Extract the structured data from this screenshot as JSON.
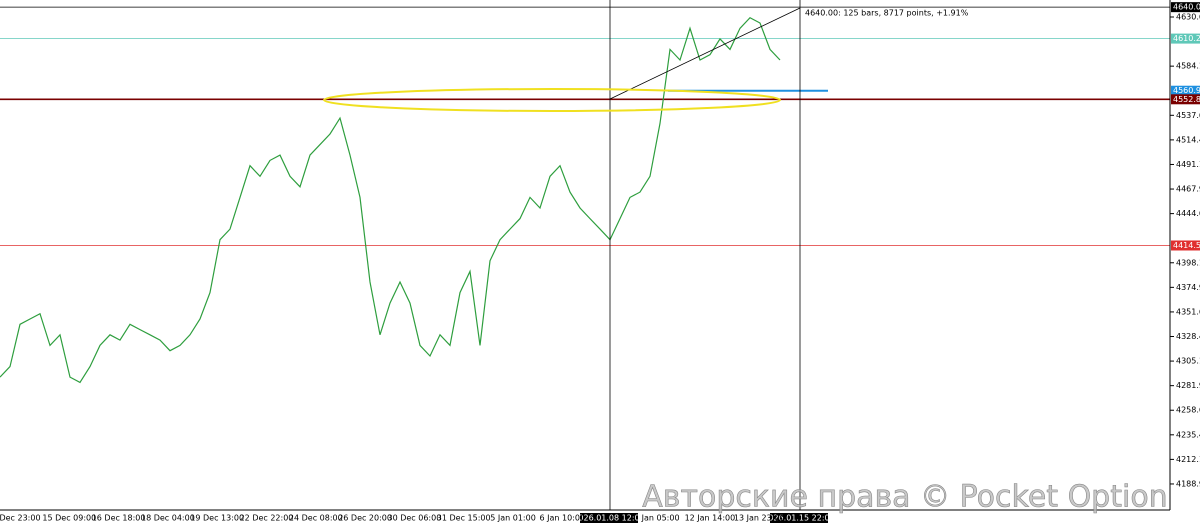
{
  "chart_data": {
    "type": "line",
    "values": [
      4290,
      4300,
      4340,
      4345,
      4350,
      4320,
      4330,
      4290,
      4285,
      4300,
      4320,
      4330,
      4325,
      4340,
      4335,
      4330,
      4325,
      4315,
      4320,
      4330,
      4345,
      4370,
      4420,
      4430,
      4460,
      4490,
      4480,
      4495,
      4500,
      4480,
      4470,
      4500,
      4510,
      4520,
      4535,
      4500,
      4460,
      4380,
      4330,
      4360,
      4380,
      4360,
      4320,
      4310,
      4330,
      4320,
      4370,
      4390,
      4320,
      4400,
      4420,
      4430,
      4440,
      4460,
      4450,
      4480,
      4490,
      4465,
      4450,
      4440,
      4430,
      4420,
      4440,
      4460,
      4465,
      4480,
      4530,
      4600,
      4590,
      4620,
      4590,
      4595,
      4610,
      4600,
      4620,
      4630,
      4625,
      4600,
      4590
    ],
    "color": "#2e9e3e",
    "ylim": [
      4164.3,
      4646.76
    ],
    "yticks": [
      4630.68,
      4584.18,
      4537.68,
      4514.43,
      4491.18,
      4467.93,
      4444.68,
      4398.18,
      4374.93,
      4351.68,
      4328.43,
      4305.18,
      4281.93,
      4258.68,
      4235.43,
      4212.18,
      4188.93
    ],
    "levels": [
      {
        "value": 4640,
        "label": "4640.00",
        "color": "#000000"
      },
      {
        "value": 4610.25,
        "label": "4610.25",
        "color": "#5fc8b8"
      },
      {
        "value": 4560.93,
        "label": "4560.93",
        "color": "#1e90e0"
      },
      {
        "value": 4552.83,
        "label": "4552.83",
        "color": "#7a0000"
      },
      {
        "value": 4414.52,
        "label": "4414.52",
        "color": "#e03030"
      }
    ],
    "xlabels": [
      "Dec 23:00",
      "15 Dec 09:00",
      "16 Dec 18:00",
      "18 Dec 04:00",
      "19 Dec 13:00",
      "22 Dec 22:00",
      "24 Dec 08:00",
      "26 Dec 20:00",
      "30 Dec 06:00",
      "31 Dec 15:00",
      "5 Jan 01:00",
      "6 Jan 10:00",
      "Jan 05:00",
      "12 Jan 14:00",
      "13 Jan 23:00"
    ],
    "crosshair": [
      "2026.01.08 12:00",
      "2026.01.15 22:00"
    ],
    "annotation": "4640.00: 125 bars, 8717 points, +1.91%",
    "watermark": "Авторские права © Pocket Option"
  }
}
